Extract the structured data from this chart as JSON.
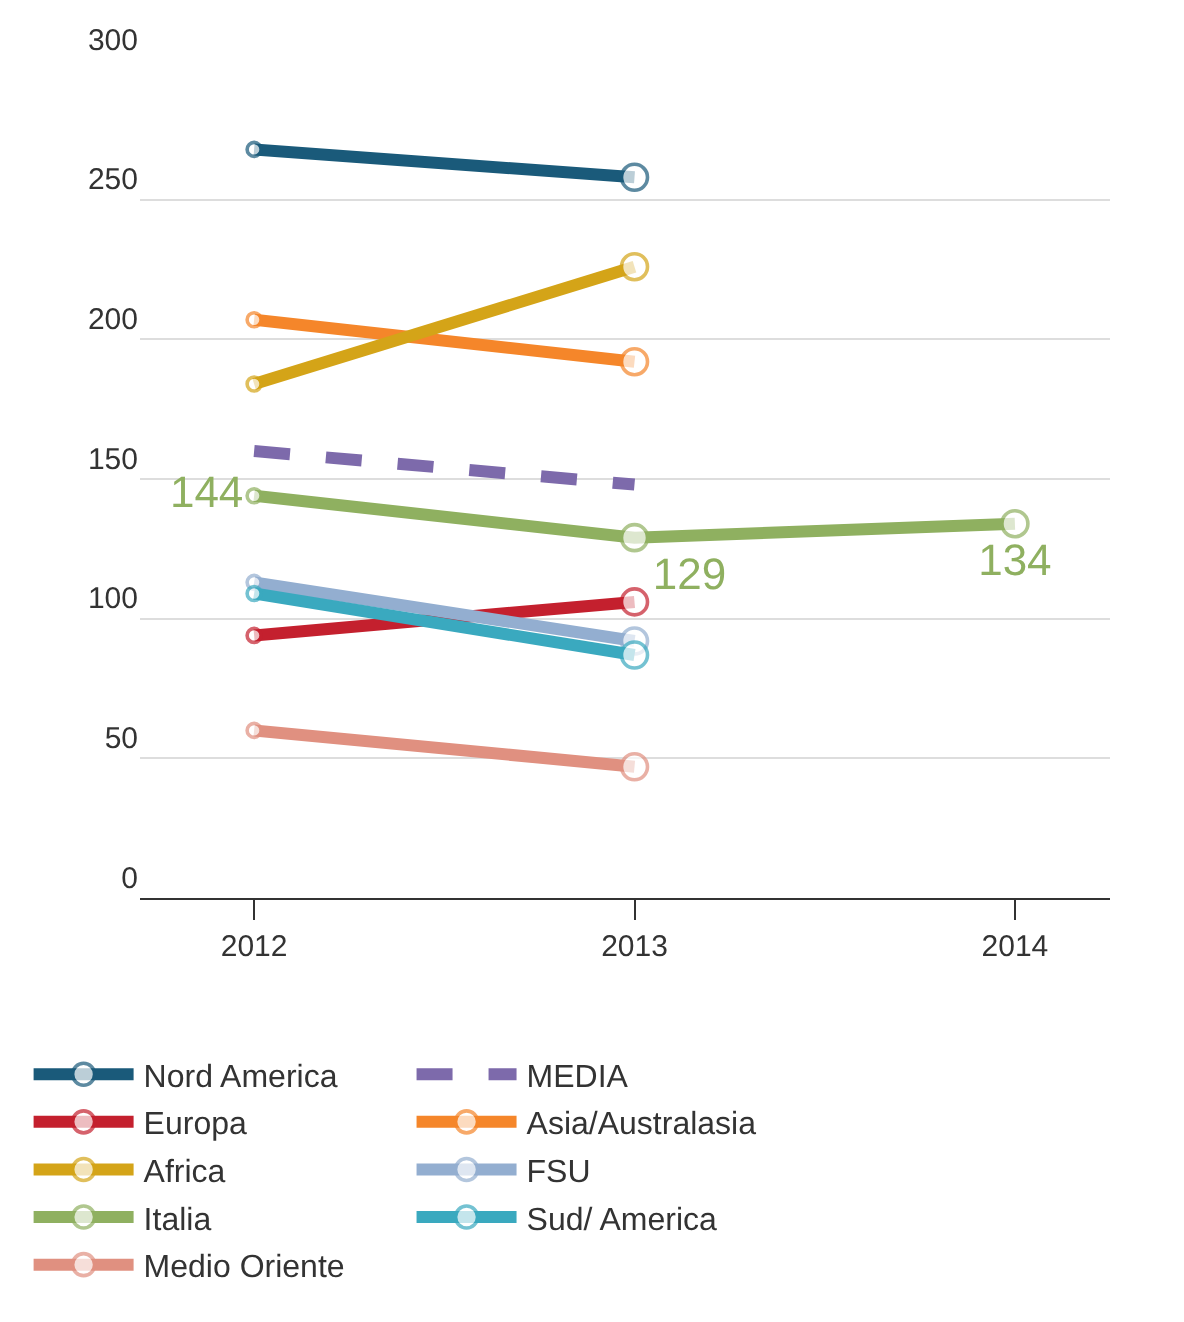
{
  "chart_data": {
    "type": "line",
    "categories": [
      "2012",
      "2013",
      "2014"
    ],
    "ylim": [
      0,
      300
    ],
    "yticks": [
      0,
      50,
      100,
      150,
      200,
      250,
      300
    ],
    "grid": "y",
    "legend": "bottom",
    "marker": "circle",
    "series": [
      {
        "name": "Nord America",
        "color": "#1a5a7a",
        "values": [
          268,
          258,
          null
        ]
      },
      {
        "name": "MEDIA",
        "color": "#7d6aab",
        "values": [
          160,
          148,
          null
        ],
        "line_style": "dashed",
        "marker": "none"
      },
      {
        "name": "Europa",
        "color": "#c4202e",
        "values": [
          94,
          106,
          null
        ]
      },
      {
        "name": "Asia/Australasia",
        "color": "#f5862a",
        "values": [
          207,
          192,
          null
        ]
      },
      {
        "name": "Africa",
        "color": "#d4a418",
        "values": [
          184,
          226,
          null
        ]
      },
      {
        "name": "FSU",
        "color": "#93aed0",
        "values": [
          113,
          92,
          null
        ]
      },
      {
        "name": "Italia",
        "color": "#8fb060",
        "values": [
          144,
          129,
          134
        ],
        "value_labels": [
          "144",
          "129",
          "134"
        ]
      },
      {
        "name": "Sud/ America",
        "color": "#3aa9bf",
        "values": [
          109,
          87,
          null
        ]
      },
      {
        "name": "Medio Oriente",
        "color": "#e09080",
        "values": [
          60,
          47,
          null
        ]
      }
    ]
  }
}
